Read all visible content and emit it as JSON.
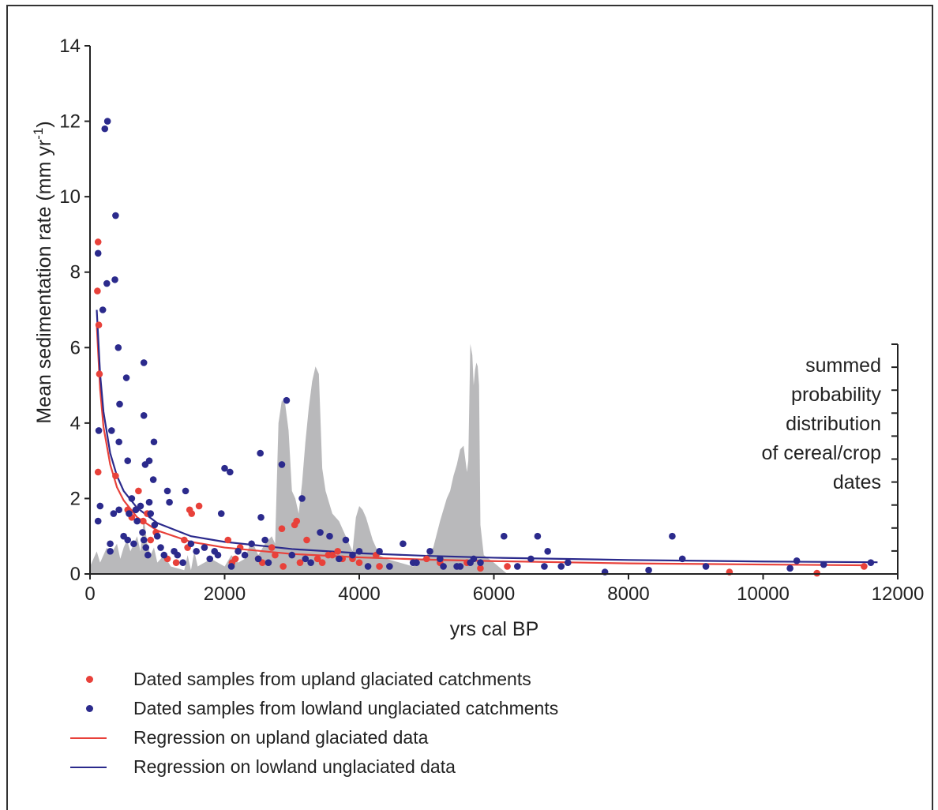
{
  "chart_data": {
    "type": "scatter",
    "xlabel": "yrs cal BP",
    "ylabel": "Mean sedimentation rate (mm yr",
    "ylabel_superscript": "-1",
    "ylabel_close": ")",
    "xlim": [
      0,
      12000
    ],
    "ylim": [
      0,
      14
    ],
    "x_ticks": [
      "0",
      "2000",
      "4000",
      "6000",
      "8000",
      "10000",
      "12000"
    ],
    "y_ticks": [
      "0",
      "2",
      "4",
      "6",
      "8",
      "10",
      "12",
      "14"
    ],
    "secondary_axis_label": [
      "summed",
      "probability",
      "distribution",
      "of cereal/crop",
      "dates"
    ],
    "colors": {
      "upland": "#e8413a",
      "lowland": "#2b2a8c",
      "spd_fill": "#b9b9bb",
      "axis": "#222222"
    },
    "series": [
      {
        "name": "Dated samples from upland glaciated catchments",
        "kind": "points",
        "color": "#e8413a",
        "points": [
          [
            120,
            8.8
          ],
          [
            110,
            7.5
          ],
          [
            130,
            6.6
          ],
          [
            140,
            5.3
          ],
          [
            120,
            2.7
          ],
          [
            380,
            2.6
          ],
          [
            560,
            1.7
          ],
          [
            620,
            1.5
          ],
          [
            680,
            1.7
          ],
          [
            720,
            2.2
          ],
          [
            790,
            1.4
          ],
          [
            850,
            1.6
          ],
          [
            900,
            0.9
          ],
          [
            980,
            1.1
          ],
          [
            1150,
            0.4
          ],
          [
            1280,
            0.3
          ],
          [
            1400,
            0.9
          ],
          [
            1450,
            0.7
          ],
          [
            1480,
            1.7
          ],
          [
            1510,
            1.6
          ],
          [
            1620,
            1.8
          ],
          [
            2050,
            0.9
          ],
          [
            2110,
            0.3
          ],
          [
            2160,
            0.4
          ],
          [
            2230,
            0.7
          ],
          [
            2500,
            0.4
          ],
          [
            2560,
            0.3
          ],
          [
            2700,
            0.7
          ],
          [
            2750,
            0.5
          ],
          [
            2850,
            1.2
          ],
          [
            2870,
            0.2
          ],
          [
            3040,
            1.3
          ],
          [
            3070,
            1.4
          ],
          [
            3120,
            0.3
          ],
          [
            3220,
            0.9
          ],
          [
            3380,
            0.4
          ],
          [
            3450,
            0.3
          ],
          [
            3540,
            0.5
          ],
          [
            3600,
            0.5
          ],
          [
            3680,
            0.6
          ],
          [
            3750,
            0.4
          ],
          [
            3900,
            0.4
          ],
          [
            4000,
            0.3
          ],
          [
            4250,
            0.5
          ],
          [
            4300,
            0.2
          ],
          [
            5000,
            0.4
          ],
          [
            5200,
            0.3
          ],
          [
            5600,
            0.3
          ],
          [
            5800,
            0.15
          ],
          [
            6200,
            0.2
          ],
          [
            9500,
            0.05
          ],
          [
            10800,
            0.02
          ],
          [
            11500,
            0.2
          ]
        ]
      },
      {
        "name": "Dated samples from lowland unglaciated catchments",
        "kind": "points",
        "color": "#2b2a8c",
        "points": [
          [
            260,
            12.0
          ],
          [
            220,
            11.8
          ],
          [
            380,
            9.5
          ],
          [
            120,
            8.5
          ],
          [
            250,
            7.7
          ],
          [
            370,
            7.8
          ],
          [
            190,
            7.0
          ],
          [
            420,
            6.0
          ],
          [
            800,
            5.6
          ],
          [
            540,
            5.2
          ],
          [
            440,
            4.5
          ],
          [
            800,
            4.2
          ],
          [
            130,
            3.8
          ],
          [
            320,
            3.8
          ],
          [
            430,
            3.5
          ],
          [
            950,
            3.5
          ],
          [
            560,
            3.0
          ],
          [
            820,
            2.9
          ],
          [
            880,
            3.0
          ],
          [
            150,
            1.8
          ],
          [
            120,
            1.4
          ],
          [
            300,
            0.8
          ],
          [
            300,
            0.6
          ],
          [
            350,
            1.6
          ],
          [
            430,
            1.7
          ],
          [
            500,
            1.0
          ],
          [
            560,
            0.9
          ],
          [
            580,
            1.6
          ],
          [
            620,
            2.0
          ],
          [
            650,
            0.8
          ],
          [
            680,
            1.7
          ],
          [
            700,
            1.4
          ],
          [
            750,
            1.8
          ],
          [
            780,
            1.1
          ],
          [
            800,
            0.9
          ],
          [
            830,
            0.7
          ],
          [
            860,
            0.5
          ],
          [
            880,
            1.9
          ],
          [
            900,
            1.6
          ],
          [
            940,
            2.5
          ],
          [
            960,
            1.3
          ],
          [
            1000,
            1.0
          ],
          [
            1050,
            0.7
          ],
          [
            1100,
            0.5
          ],
          [
            1150,
            2.2
          ],
          [
            1180,
            1.9
          ],
          [
            1250,
            0.6
          ],
          [
            1300,
            0.5
          ],
          [
            1380,
            0.3
          ],
          [
            1420,
            2.2
          ],
          [
            1500,
            0.8
          ],
          [
            1580,
            0.6
          ],
          [
            1700,
            0.7
          ],
          [
            1780,
            0.4
          ],
          [
            1850,
            0.6
          ],
          [
            1900,
            0.5
          ],
          [
            1950,
            1.6
          ],
          [
            2000,
            2.8
          ],
          [
            2080,
            2.7
          ],
          [
            2100,
            0.2
          ],
          [
            2200,
            0.6
          ],
          [
            2300,
            0.5
          ],
          [
            2400,
            0.8
          ],
          [
            2500,
            0.4
          ],
          [
            2530,
            3.2
          ],
          [
            2540,
            1.5
          ],
          [
            2600,
            0.9
          ],
          [
            2650,
            0.3
          ],
          [
            2850,
            2.9
          ],
          [
            2920,
            4.6
          ],
          [
            3000,
            0.5
          ],
          [
            3150,
            2.0
          ],
          [
            3200,
            0.4
          ],
          [
            3280,
            0.3
          ],
          [
            3420,
            1.1
          ],
          [
            3560,
            1.0
          ],
          [
            3700,
            0.4
          ],
          [
            3800,
            0.9
          ],
          [
            3900,
            0.5
          ],
          [
            4000,
            0.6
          ],
          [
            4130,
            0.2
          ],
          [
            4300,
            0.6
          ],
          [
            4450,
            0.2
          ],
          [
            4650,
            0.8
          ],
          [
            4800,
            0.3
          ],
          [
            4850,
            0.3
          ],
          [
            5050,
            0.6
          ],
          [
            5200,
            0.4
          ],
          [
            5250,
            0.2
          ],
          [
            5450,
            0.2
          ],
          [
            5500,
            0.2
          ],
          [
            5650,
            0.3
          ],
          [
            5700,
            0.4
          ],
          [
            5800,
            0.3
          ],
          [
            6150,
            1.0
          ],
          [
            6350,
            0.2
          ],
          [
            6550,
            0.4
          ],
          [
            6650,
            1.0
          ],
          [
            6750,
            0.2
          ],
          [
            6800,
            0.6
          ],
          [
            7000,
            0.2
          ],
          [
            7100,
            0.3
          ],
          [
            7650,
            0.05
          ],
          [
            8300,
            0.1
          ],
          [
            8650,
            1.0
          ],
          [
            8800,
            0.4
          ],
          [
            9150,
            0.2
          ],
          [
            10400,
            0.15
          ],
          [
            10500,
            0.35
          ],
          [
            10900,
            0.25
          ],
          [
            11600,
            0.3
          ]
        ]
      },
      {
        "name": "Regression on upland glaciated data",
        "kind": "line",
        "color": "#e8413a",
        "x": [
          100,
          150,
          200,
          300,
          400,
          500,
          700,
          1000,
          1500,
          2000,
          3000,
          4000,
          5000,
          6000,
          8000,
          10000,
          11500
        ],
        "y": [
          6.6,
          4.9,
          3.9,
          2.9,
          2.3,
          1.95,
          1.5,
          1.15,
          0.85,
          0.7,
          0.53,
          0.44,
          0.38,
          0.34,
          0.28,
          0.25,
          0.23
        ]
      },
      {
        "name": "Regression on lowland unglaciated data",
        "kind": "line",
        "color": "#2b2a8c",
        "x": [
          100,
          150,
          200,
          300,
          400,
          500,
          700,
          1000,
          1500,
          2000,
          3000,
          4000,
          5000,
          6000,
          8000,
          10000,
          11700
        ],
        "y": [
          7.0,
          5.3,
          4.3,
          3.2,
          2.6,
          2.2,
          1.75,
          1.35,
          1.0,
          0.85,
          0.66,
          0.55,
          0.48,
          0.43,
          0.37,
          0.33,
          0.31
        ]
      }
    ],
    "spd": {
      "x": [
        0,
        100,
        150,
        250,
        300,
        400,
        450,
        500,
        550,
        600,
        650,
        700,
        750,
        800,
        850,
        900,
        950,
        1000,
        1100,
        1200,
        1400,
        1450,
        1500,
        1550,
        1600,
        1800,
        2000,
        2100,
        2200,
        2300,
        2400,
        2500,
        2600,
        2700,
        2750,
        2800,
        2850,
        2900,
        2950,
        3000,
        3050,
        3100,
        3150,
        3200,
        3250,
        3300,
        3350,
        3400,
        3450,
        3500,
        3550,
        3600,
        3650,
        3700,
        3800,
        3900,
        3950,
        4000,
        4050,
        4100,
        4150,
        4200,
        4300,
        4400,
        4600,
        4800,
        5000,
        5100,
        5200,
        5250,
        5300,
        5350,
        5400,
        5450,
        5500,
        5550,
        5600,
        5620,
        5650,
        5680,
        5700,
        5720,
        5740,
        5760,
        5780,
        5800,
        5850,
        6000,
        6200
      ],
      "y": [
        0.2,
        0.6,
        0.3,
        0.7,
        0.5,
        0.8,
        0.4,
        0.7,
        0.9,
        0.6,
        0.8,
        1.0,
        0.6,
        1.5,
        0.8,
        0.5,
        0.7,
        0.3,
        0.5,
        0.2,
        0.1,
        0.5,
        0.1,
        0.6,
        0.2,
        0.4,
        0.2,
        0.5,
        0.3,
        0.4,
        0.9,
        0.5,
        0.8,
        1.0,
        0.8,
        4.0,
        4.6,
        4.5,
        3.8,
        2.2,
        2.0,
        1.6,
        2.4,
        3.5,
        4.4,
        5.1,
        5.5,
        5.3,
        2.8,
        2.2,
        1.9,
        1.6,
        1.5,
        1.4,
        1.0,
        0.6,
        1.5,
        1.8,
        1.7,
        1.5,
        1.2,
        0.9,
        0.5,
        0.4,
        0.3,
        0.2,
        0.5,
        0.7,
        1.4,
        1.7,
        2.0,
        2.2,
        2.6,
        2.9,
        3.3,
        3.4,
        2.7,
        3.0,
        6.1,
        5.8,
        5.0,
        5.4,
        5.6,
        5.5,
        5.0,
        1.3,
        0.5,
        0.3,
        0.0
      ]
    }
  },
  "legend": [
    {
      "label": "Dated samples from upland glaciated catchments",
      "kind": "dot",
      "color": "#e8413a"
    },
    {
      "label": "Dated samples from lowland unglaciated catchments",
      "kind": "dot",
      "color": "#2b2a8c"
    },
    {
      "label": "Regression on upland glaciated data",
      "kind": "line",
      "color": "#e8413a"
    },
    {
      "label": "Regression on lowland unglaciated data",
      "kind": "line",
      "color": "#2b2a8c"
    }
  ]
}
